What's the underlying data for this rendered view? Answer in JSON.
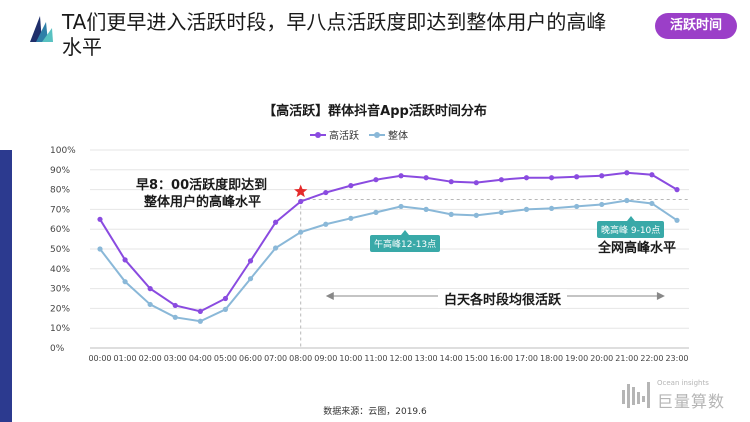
{
  "header": {
    "headline": "TA们更早进入活跃时段，早八点活跃度即达到整体用户的高峰水平",
    "tag": "活跃时间"
  },
  "colors": {
    "accent": "#8a4be0",
    "series_high": "#8a4be0",
    "series_all": "#8ab8d8",
    "callout": "#39a9a8",
    "tag": "#9b3fc8",
    "sidebar": "#2c3a8f"
  },
  "annotations": {
    "morning_line1": "早8：00活跃度即达到",
    "morning_line2": "整体用户的高峰水平",
    "noon_peak": "午高峰12-13点",
    "evening_peak": "晚高峰 9-10点",
    "overall_peak": "全网高峰水平",
    "daytime": "白天各时段均很活跃"
  },
  "footer": {
    "source": "数据来源：云图，2019.6",
    "brand_sub": "Ocean insights",
    "brand_name": "巨量算数"
  },
  "chart_data": {
    "type": "line",
    "title": "【高活跃】群体抖音App活跃时间分布",
    "xlabel": "",
    "ylabel": "",
    "ylim": [
      0,
      100
    ],
    "yticks": [
      "0%",
      "10%",
      "20%",
      "30%",
      "40%",
      "50%",
      "60%",
      "70%",
      "80%",
      "90%",
      "100%"
    ],
    "legend_position": "top-center",
    "grid": true,
    "x": [
      "00:00",
      "01:00",
      "02:00",
      "03:00",
      "04:00",
      "05:00",
      "06:00",
      "07:00",
      "08:00",
      "09:00",
      "10:00",
      "11:00",
      "12:00",
      "13:00",
      "14:00",
      "15:00",
      "16:00",
      "17:00",
      "18:00",
      "19:00",
      "20:00",
      "21:00",
      "22:00",
      "23:00"
    ],
    "series": [
      {
        "name": "高活跃",
        "color": "#8a4be0",
        "values": [
          65,
          44.5,
          30,
          21.5,
          18.5,
          25,
          44,
          63.5,
          74,
          78.5,
          82,
          85,
          87,
          86,
          84,
          83.5,
          85,
          86,
          86,
          86.5,
          87,
          88.5,
          87.5,
          80
        ]
      },
      {
        "name": "整体",
        "color": "#8ab8d8",
        "values": [
          50,
          33.5,
          22,
          15.5,
          13.5,
          19.5,
          35,
          50.5,
          58.5,
          62.5,
          65.5,
          68.5,
          71.5,
          70,
          67.5,
          67,
          68.5,
          70,
          70.5,
          71.5,
          72.5,
          74.5,
          73,
          64.5
        ]
      }
    ],
    "reference_line": 75
  }
}
